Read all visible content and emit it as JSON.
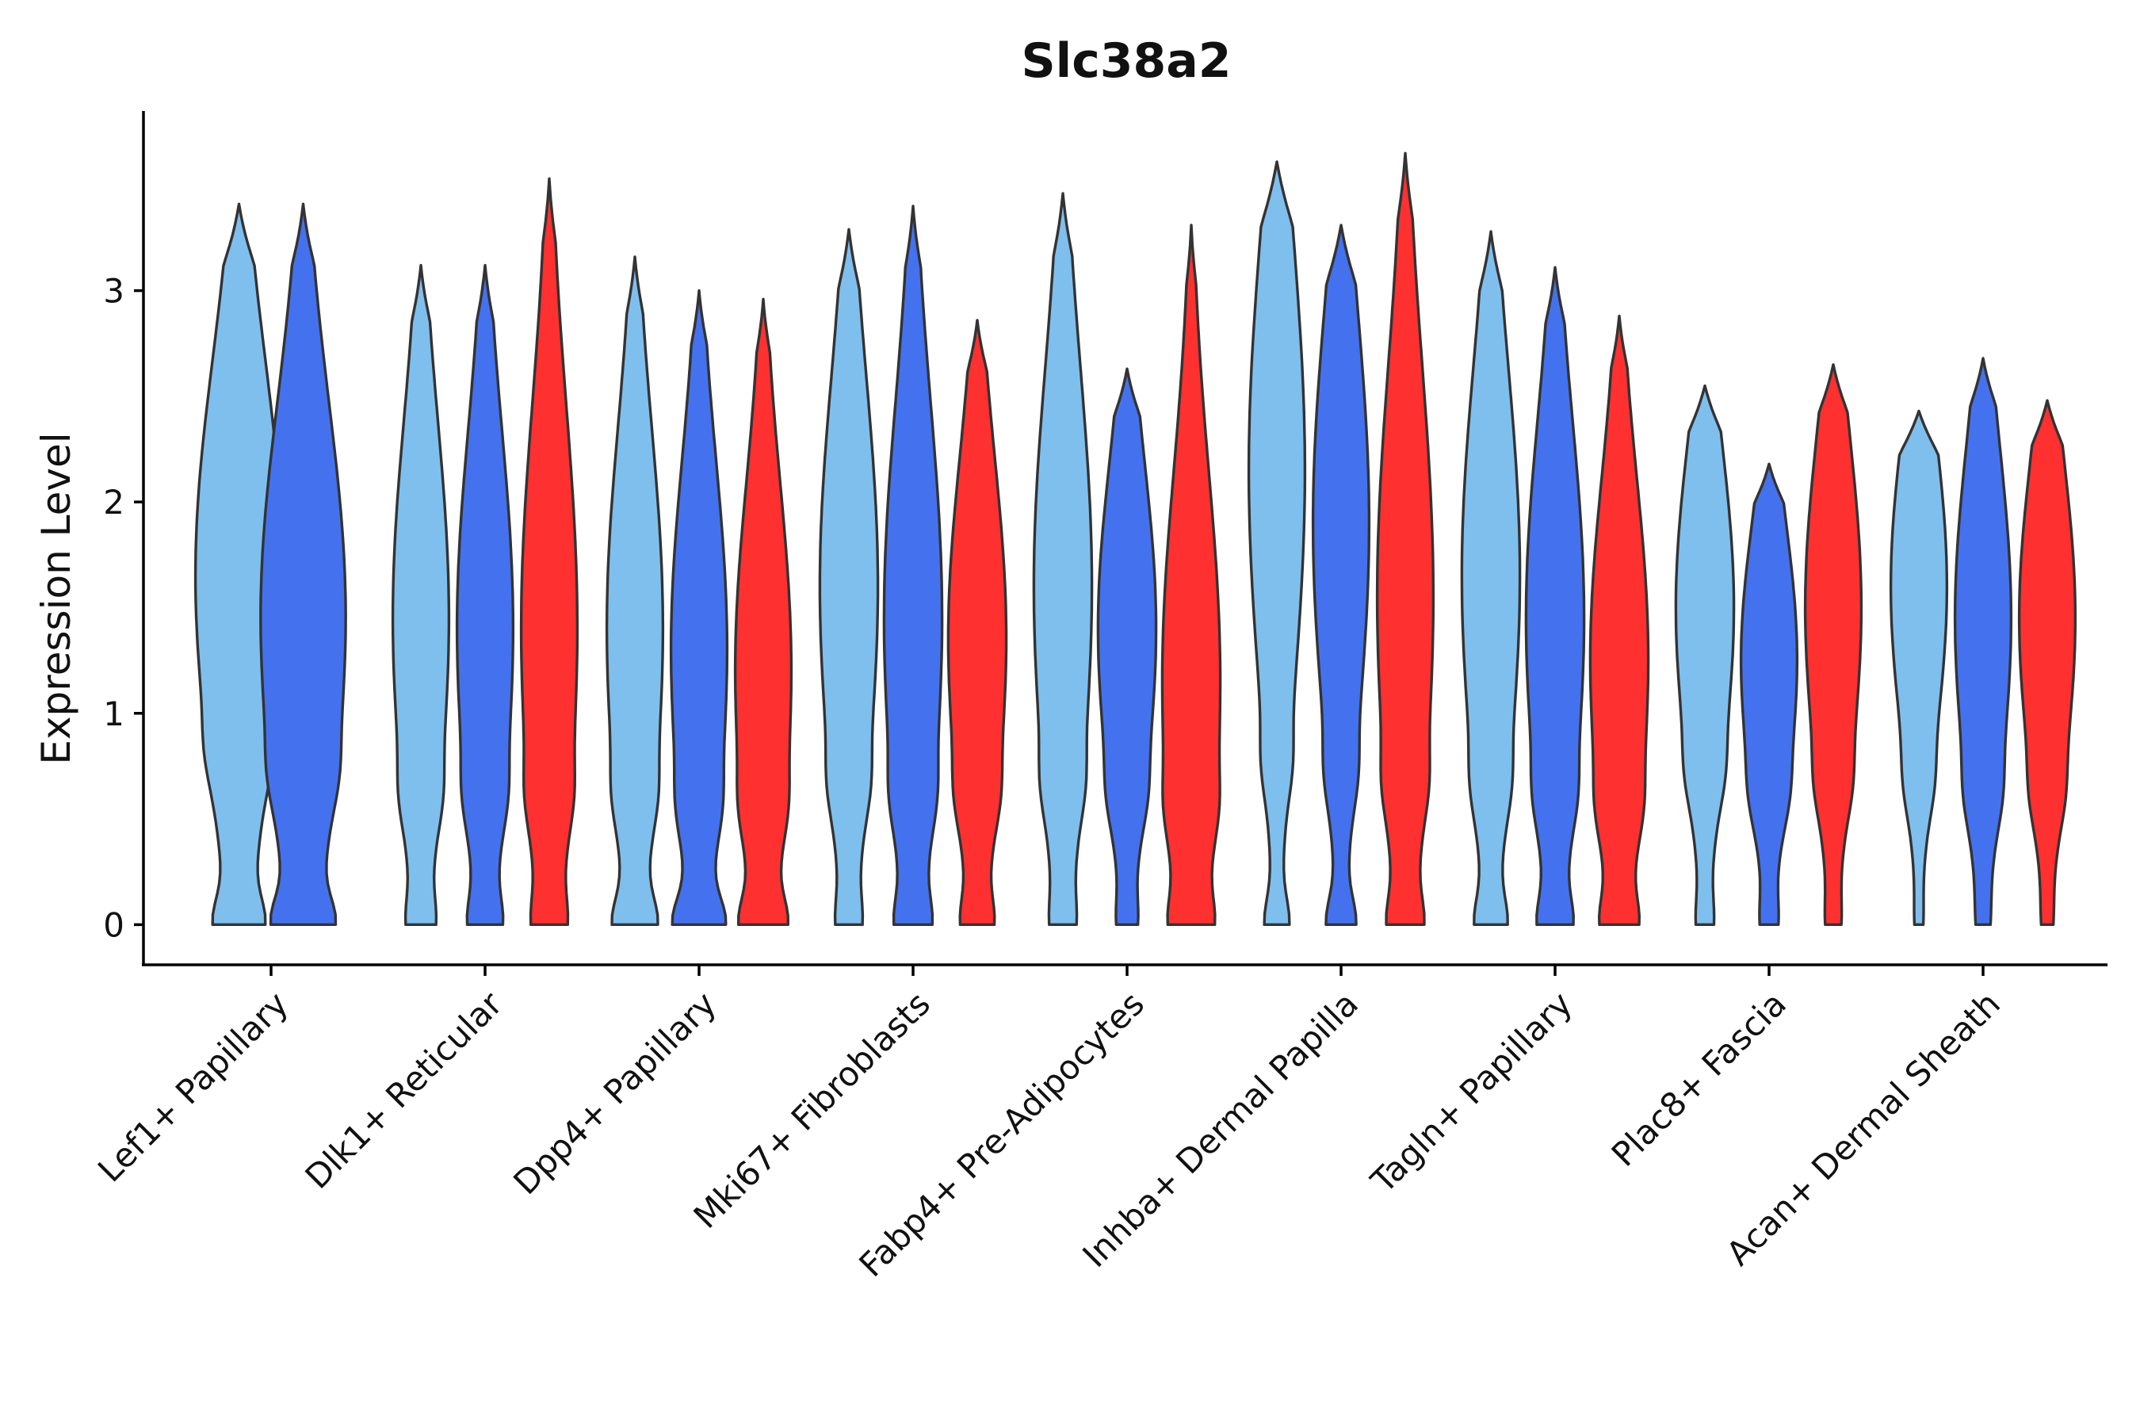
{
  "chart_data": {
    "type": "violin",
    "title": "Slc38a2",
    "ylabel": "Expression Level",
    "xlabel": "",
    "ylim": [
      -0.19,
      3.85
    ],
    "yticks": [
      0,
      1,
      2,
      3
    ],
    "categories": [
      "Lef1+ Papillary",
      "Dlk1+ Reticular",
      "Dpp4+ Papillary",
      "Mki67+ Fibroblasts",
      "Fabp4+ Pre-Adipocytes",
      "Inhba+ Dermal Papilla",
      "Tagln+ Papillary",
      "Plac8+ Fascia",
      "Acan+ Dermal Sheath"
    ],
    "group_colors": [
      "#7FBFEE",
      "#4472EE",
      "#FF3030"
    ],
    "violins": [
      {
        "category": 0,
        "group": 0,
        "max": 3.41,
        "w0": 0.3,
        "width": 0.9,
        "peak": 1.65,
        "mid": 0.8
      },
      {
        "category": 0,
        "group": 1,
        "max": 3.41,
        "w0": 0.35,
        "width": 0.88,
        "peak": 1.45,
        "mid": 0.7
      },
      {
        "category": 1,
        "group": 0,
        "max": 3.12,
        "w0": 0.14,
        "width": 0.58,
        "peak": 1.45,
        "mid": 0.6
      },
      {
        "category": 1,
        "group": 1,
        "max": 3.12,
        "w0": 0.18,
        "width": 0.58,
        "peak": 1.4,
        "mid": 0.6
      },
      {
        "category": 1,
        "group": 2,
        "max": 3.53,
        "w0": 0.14,
        "width": 0.58,
        "peak": 1.4,
        "mid": 0.6
      },
      {
        "category": 2,
        "group": 0,
        "max": 3.16,
        "w0": 0.28,
        "width": 0.58,
        "peak": 1.4,
        "mid": 0.6
      },
      {
        "category": 2,
        "group": 1,
        "max": 3.0,
        "w0": 0.35,
        "width": 0.58,
        "peak": 1.3,
        "mid": 0.55
      },
      {
        "category": 2,
        "group": 2,
        "max": 2.96,
        "w0": 0.28,
        "width": 0.58,
        "peak": 1.2,
        "mid": 0.55
      },
      {
        "category": 3,
        "group": 0,
        "max": 3.29,
        "w0": 0.12,
        "width": 0.6,
        "peak": 1.6,
        "mid": 0.65
      },
      {
        "category": 3,
        "group": 1,
        "max": 3.4,
        "w0": 0.18,
        "width": 0.6,
        "peak": 1.45,
        "mid": 0.6
      },
      {
        "category": 3,
        "group": 2,
        "max": 2.86,
        "w0": 0.18,
        "width": 0.6,
        "peak": 1.35,
        "mid": 0.6
      },
      {
        "category": 4,
        "group": 0,
        "max": 3.46,
        "w0": 0.1,
        "width": 0.6,
        "peak": 1.6,
        "mid": 0.65
      },
      {
        "category": 4,
        "group": 1,
        "max": 2.63,
        "w0": 0.1,
        "width": 0.6,
        "peak": 1.4,
        "mid": 0.6
      },
      {
        "category": 4,
        "group": 2,
        "max": 3.31,
        "w0": 0.18,
        "width": 0.6,
        "peak": 1.15,
        "mid": 0.55
      },
      {
        "category": 5,
        "group": 0,
        "max": 3.61,
        "w0": 0.18,
        "width": 0.58,
        "peak": 2.15,
        "mid": 0.75
      },
      {
        "category": 5,
        "group": 1,
        "max": 3.31,
        "w0": 0.22,
        "width": 0.58,
        "peak": 1.9,
        "mid": 0.7
      },
      {
        "category": 5,
        "group": 2,
        "max": 3.65,
        "w0": 0.18,
        "width": 0.58,
        "peak": 1.55,
        "mid": 0.65
      },
      {
        "category": 6,
        "group": 0,
        "max": 3.28,
        "w0": 0.2,
        "width": 0.6,
        "peak": 1.65,
        "mid": 0.65
      },
      {
        "category": 6,
        "group": 1,
        "max": 3.11,
        "w0": 0.2,
        "width": 0.6,
        "peak": 1.45,
        "mid": 0.6
      },
      {
        "category": 6,
        "group": 2,
        "max": 2.88,
        "w0": 0.2,
        "width": 0.6,
        "peak": 1.25,
        "mid": 0.55
      },
      {
        "category": 7,
        "group": 0,
        "max": 2.55,
        "w0": 0.1,
        "width": 0.6,
        "peak": 1.5,
        "mid": 0.7
      },
      {
        "category": 7,
        "group": 1,
        "max": 2.18,
        "w0": 0.1,
        "width": 0.58,
        "peak": 1.25,
        "mid": 0.6
      },
      {
        "category": 7,
        "group": 2,
        "max": 2.65,
        "w0": 0.07,
        "width": 0.58,
        "peak": 1.5,
        "mid": 0.65
      },
      {
        "category": 8,
        "group": 0,
        "max": 2.43,
        "w0": 0.04,
        "width": 0.58,
        "peak": 1.6,
        "mid": 0.65
      },
      {
        "category": 8,
        "group": 1,
        "max": 2.68,
        "w0": 0.04,
        "width": 0.58,
        "peak": 1.45,
        "mid": 0.6
      },
      {
        "category": 8,
        "group": 2,
        "max": 2.48,
        "w0": 0.04,
        "width": 0.58,
        "peak": 1.45,
        "mid": 0.6
      }
    ]
  }
}
